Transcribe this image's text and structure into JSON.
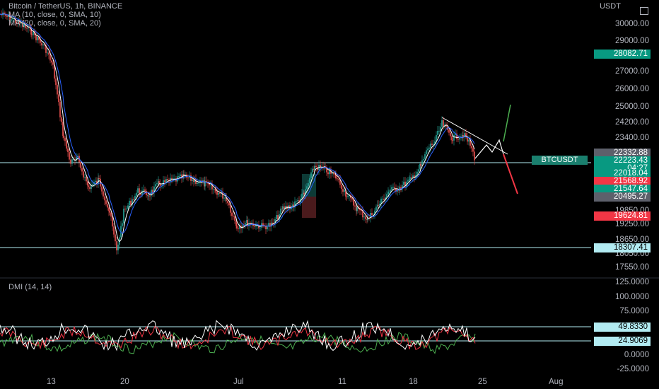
{
  "header": {
    "title": "Bitcoin / TetherUS, 1h, BINANCE",
    "ma1": "MA (10, close, 0, SMA, 10)",
    "ma2": "MA (20, close, 0, SMA, 20)",
    "dmi": "DMI (14, 14)",
    "currency": "USDT"
  },
  "price_axis": {
    "ticks": [
      "30000.00",
      "29000.00",
      "27000.00",
      "26000.00",
      "25000.00",
      "24200.00",
      "23400.00",
      "19850.00",
      "19250.00",
      "18650.00",
      "18050.00",
      "17550.00"
    ]
  },
  "badges": {
    "top": "28082.71",
    "b1": "22332.88",
    "b2": "22223.43",
    "countdown": "04:27",
    "b3": "22018.04",
    "b4": "21568.92",
    "b5": "21547.64",
    "b6": "20495.27",
    "b7": "19624.81",
    "b8": "18307.41",
    "symbol": "BTCUSDT"
  },
  "dmi_axis": {
    "ticks": [
      "125.0000",
      "100.0000",
      "75.0000",
      "0.0000",
      "-25.0000"
    ],
    "level_high": "49.8330",
    "level_low": "24.9069"
  },
  "time_axis": {
    "labels": [
      "13",
      "20",
      "Jul",
      "11",
      "18",
      "25",
      "Aug"
    ]
  },
  "colors": {
    "background": "#000000",
    "ma10": "#ffffff",
    "ma20": "#2962ff",
    "up": "#26a69a",
    "down": "#ef5350",
    "di_plus": "#4caf50",
    "di_minus": "#f23645",
    "adx": "#ffffff"
  }
}
